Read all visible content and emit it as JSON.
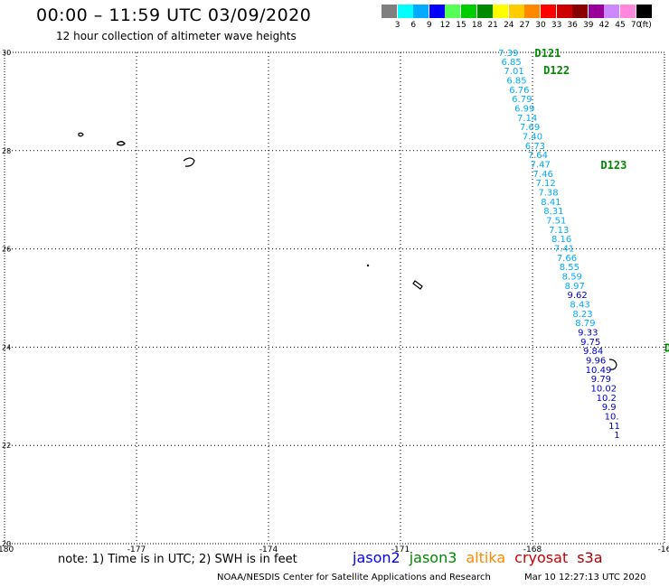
{
  "header": {
    "title": "00:00 – 11:59 UTC 03/09/2020",
    "subtitle": "12 hour collection of altimeter wave heights"
  },
  "color_scale": {
    "unit": "(ft)",
    "labels": [
      "3",
      "6",
      "9",
      "12",
      "15",
      "18",
      "21",
      "24",
      "27",
      "30",
      "33",
      "36",
      "39",
      "42",
      "45",
      "70"
    ],
    "colors": [
      "#7f7f7f",
      "#00ffff",
      "#00aaff",
      "#0000ff",
      "#55ff55",
      "#00cc00",
      "#008800",
      "#ffff00",
      "#ffcc00",
      "#ff8800",
      "#ff0000",
      "#cc0000",
      "#880000",
      "#990099",
      "#cc88ff",
      "#ff88dd",
      "#000000"
    ]
  },
  "map": {
    "lon_ticks": [
      "-180",
      "-177",
      "-174",
      "-171",
      "-168",
      "-16"
    ],
    "lat_ticks": [
      "30",
      "28",
      "26",
      "24",
      "22",
      "20"
    ],
    "track_labels": [
      {
        "text": "D121",
        "lon": -167.95,
        "lat": 29.98
      },
      {
        "text": "D122",
        "lon": -167.75,
        "lat": 29.63
      },
      {
        "text": "D123",
        "lon": -166.45,
        "lat": 27.7
      },
      {
        "text": "D",
        "lon": -165.0,
        "lat": 23.98
      }
    ],
    "swh_points": [
      {
        "v": "7.39",
        "lon": -168.55,
        "lat": 30.0,
        "c": "#00aaff"
      },
      {
        "v": "6.85",
        "lon": -168.48,
        "lat": 29.82,
        "c": "#00aaff"
      },
      {
        "v": "7.01",
        "lon": -168.42,
        "lat": 29.63,
        "c": "#00aaff"
      },
      {
        "v": "6.85",
        "lon": -168.36,
        "lat": 29.44,
        "c": "#00aaff"
      },
      {
        "v": "6.76",
        "lon": -168.3,
        "lat": 29.25,
        "c": "#00aaff"
      },
      {
        "v": "6.79",
        "lon": -168.24,
        "lat": 29.06,
        "c": "#00aaff"
      },
      {
        "v": "6.99",
        "lon": -168.18,
        "lat": 28.87,
        "c": "#00aaff"
      },
      {
        "v": "7.14",
        "lon": -168.12,
        "lat": 28.68,
        "c": "#00aaff"
      },
      {
        "v": "7.69",
        "lon": -168.06,
        "lat": 28.49,
        "c": "#00aaff"
      },
      {
        "v": "7.40",
        "lon": -168.0,
        "lat": 28.3,
        "c": "#00aaff"
      },
      {
        "v": "6.73",
        "lon": -167.94,
        "lat": 28.11,
        "c": "#00aaff"
      },
      {
        "v": "7.64",
        "lon": -167.88,
        "lat": 27.92,
        "c": "#00aaff"
      },
      {
        "v": "7.47",
        "lon": -167.82,
        "lat": 27.73,
        "c": "#00aaff"
      },
      {
        "v": "7.46",
        "lon": -167.76,
        "lat": 27.54,
        "c": "#00aaff"
      },
      {
        "v": "7.12",
        "lon": -167.7,
        "lat": 27.35,
        "c": "#00aaff"
      },
      {
        "v": "7.38",
        "lon": -167.64,
        "lat": 27.16,
        "c": "#00aaff"
      },
      {
        "v": "8.41",
        "lon": -167.58,
        "lat": 26.97,
        "c": "#00aaff"
      },
      {
        "v": "8.31",
        "lon": -167.52,
        "lat": 26.78,
        "c": "#00aaff"
      },
      {
        "v": "7.51",
        "lon": -167.46,
        "lat": 26.59,
        "c": "#00aaff"
      },
      {
        "v": "7.13",
        "lon": -167.4,
        "lat": 26.4,
        "c": "#00aaff"
      },
      {
        "v": "8.16",
        "lon": -167.34,
        "lat": 26.21,
        "c": "#00aaff"
      },
      {
        "v": "7.41",
        "lon": -167.28,
        "lat": 26.02,
        "c": "#00aaff"
      },
      {
        "v": "7.66",
        "lon": -167.22,
        "lat": 25.83,
        "c": "#00aaff"
      },
      {
        "v": "8.55",
        "lon": -167.16,
        "lat": 25.64,
        "c": "#00aaff"
      },
      {
        "v": "8.59",
        "lon": -167.1,
        "lat": 25.45,
        "c": "#00aaff"
      },
      {
        "v": "8.97",
        "lon": -167.04,
        "lat": 25.26,
        "c": "#00aaff"
      },
      {
        "v": "9.62",
        "lon": -166.98,
        "lat": 25.07,
        "c": "#0000cc"
      },
      {
        "v": "8.43",
        "lon": -166.92,
        "lat": 24.88,
        "c": "#00aaff"
      },
      {
        "v": "8.23",
        "lon": -166.86,
        "lat": 24.69,
        "c": "#00aaff"
      },
      {
        "v": "8.79",
        "lon": -166.8,
        "lat": 24.5,
        "c": "#00aaff"
      },
      {
        "v": "9.33",
        "lon": -166.74,
        "lat": 24.31,
        "c": "#0000cc"
      },
      {
        "v": "9.75",
        "lon": -166.68,
        "lat": 24.12,
        "c": "#0000cc"
      },
      {
        "v": "9.84",
        "lon": -166.62,
        "lat": 23.93,
        "c": "#0000cc"
      },
      {
        "v": "9.96",
        "lon": -166.56,
        "lat": 23.74,
        "c": "#0000cc"
      },
      {
        "v": "10.49",
        "lon": -166.5,
        "lat": 23.55,
        "c": "#0000cc"
      },
      {
        "v": "9.79",
        "lon": -166.44,
        "lat": 23.36,
        "c": "#0000cc"
      },
      {
        "v": "10.02",
        "lon": -166.38,
        "lat": 23.17,
        "c": "#0000cc"
      },
      {
        "v": "10.2",
        "lon": -166.32,
        "lat": 22.98,
        "c": "#0000cc"
      },
      {
        "v": "9.9",
        "lon": -166.26,
        "lat": 22.79,
        "c": "#0000cc"
      },
      {
        "v": "10.",
        "lon": -166.2,
        "lat": 22.6,
        "c": "#0000cc"
      },
      {
        "v": "11",
        "lon": -166.14,
        "lat": 22.41,
        "c": "#0000cc"
      },
      {
        "v": "1",
        "lon": -166.08,
        "lat": 22.22,
        "c": "#0000cc"
      }
    ]
  },
  "footer": {
    "note": "note: 1) Time is in UTC; 2) SWH is in feet",
    "missions": [
      {
        "name": "jason2",
        "color": "#0000ff"
      },
      {
        "name": "jason3",
        "color": "#008800"
      },
      {
        "name": "altika",
        "color": "#ff8800"
      },
      {
        "name": "cryosat",
        "color": "#cc0000"
      },
      {
        "name": "s3a",
        "color": "#aa0000"
      }
    ],
    "credit": "NOAA/NESDIS Center for Satellite Applications and Research",
    "timestamp": "Mar 10 12:27:13 UTC 2020"
  }
}
